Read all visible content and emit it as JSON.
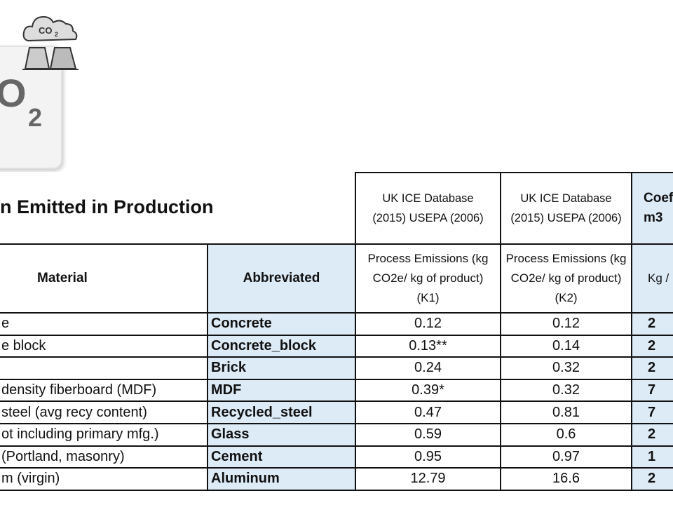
{
  "title": "n Emitted in Production",
  "columns": [
    {
      "label": "Material"
    },
    {
      "label": "Abbreviated"
    },
    {
      "source": "UK ICE Database (2015) USEPA (2006)",
      "label": "Process Emissions (kg CO2e/ kg of product) (K1)"
    },
    {
      "source": "UK ICE Database (2015) USEPA (2006)",
      "label": "Process Emissions (kg CO2e/ kg of product) (K2)"
    },
    {
      "source_lines": [
        "Coef",
        "m3"
      ],
      "label": "Kg /"
    }
  ],
  "rows": [
    [
      "e",
      "Concrete",
      0.12,
      0.12,
      "2"
    ],
    [
      "e block",
      "Concrete_block",
      "0.13**",
      0.14,
      "2"
    ],
    [
      "",
      "Brick",
      0.24,
      0.32,
      "2"
    ],
    [
      "density fiberboard (MDF)",
      "MDF",
      "0.39*",
      0.32,
      "7"
    ],
    [
      " steel (avg recy content)",
      "Recycled_steel",
      0.47,
      0.81,
      "7"
    ],
    [
      "ot including primary mfg.)",
      "Glass",
      0.59,
      0.6,
      "2"
    ],
    [
      "(Portland, masonry)",
      "Cement",
      0.95,
      0.97,
      "1"
    ],
    [
      "m (virgin)",
      "Aluminum",
      12.79,
      16.6,
      "2"
    ]
  ]
}
